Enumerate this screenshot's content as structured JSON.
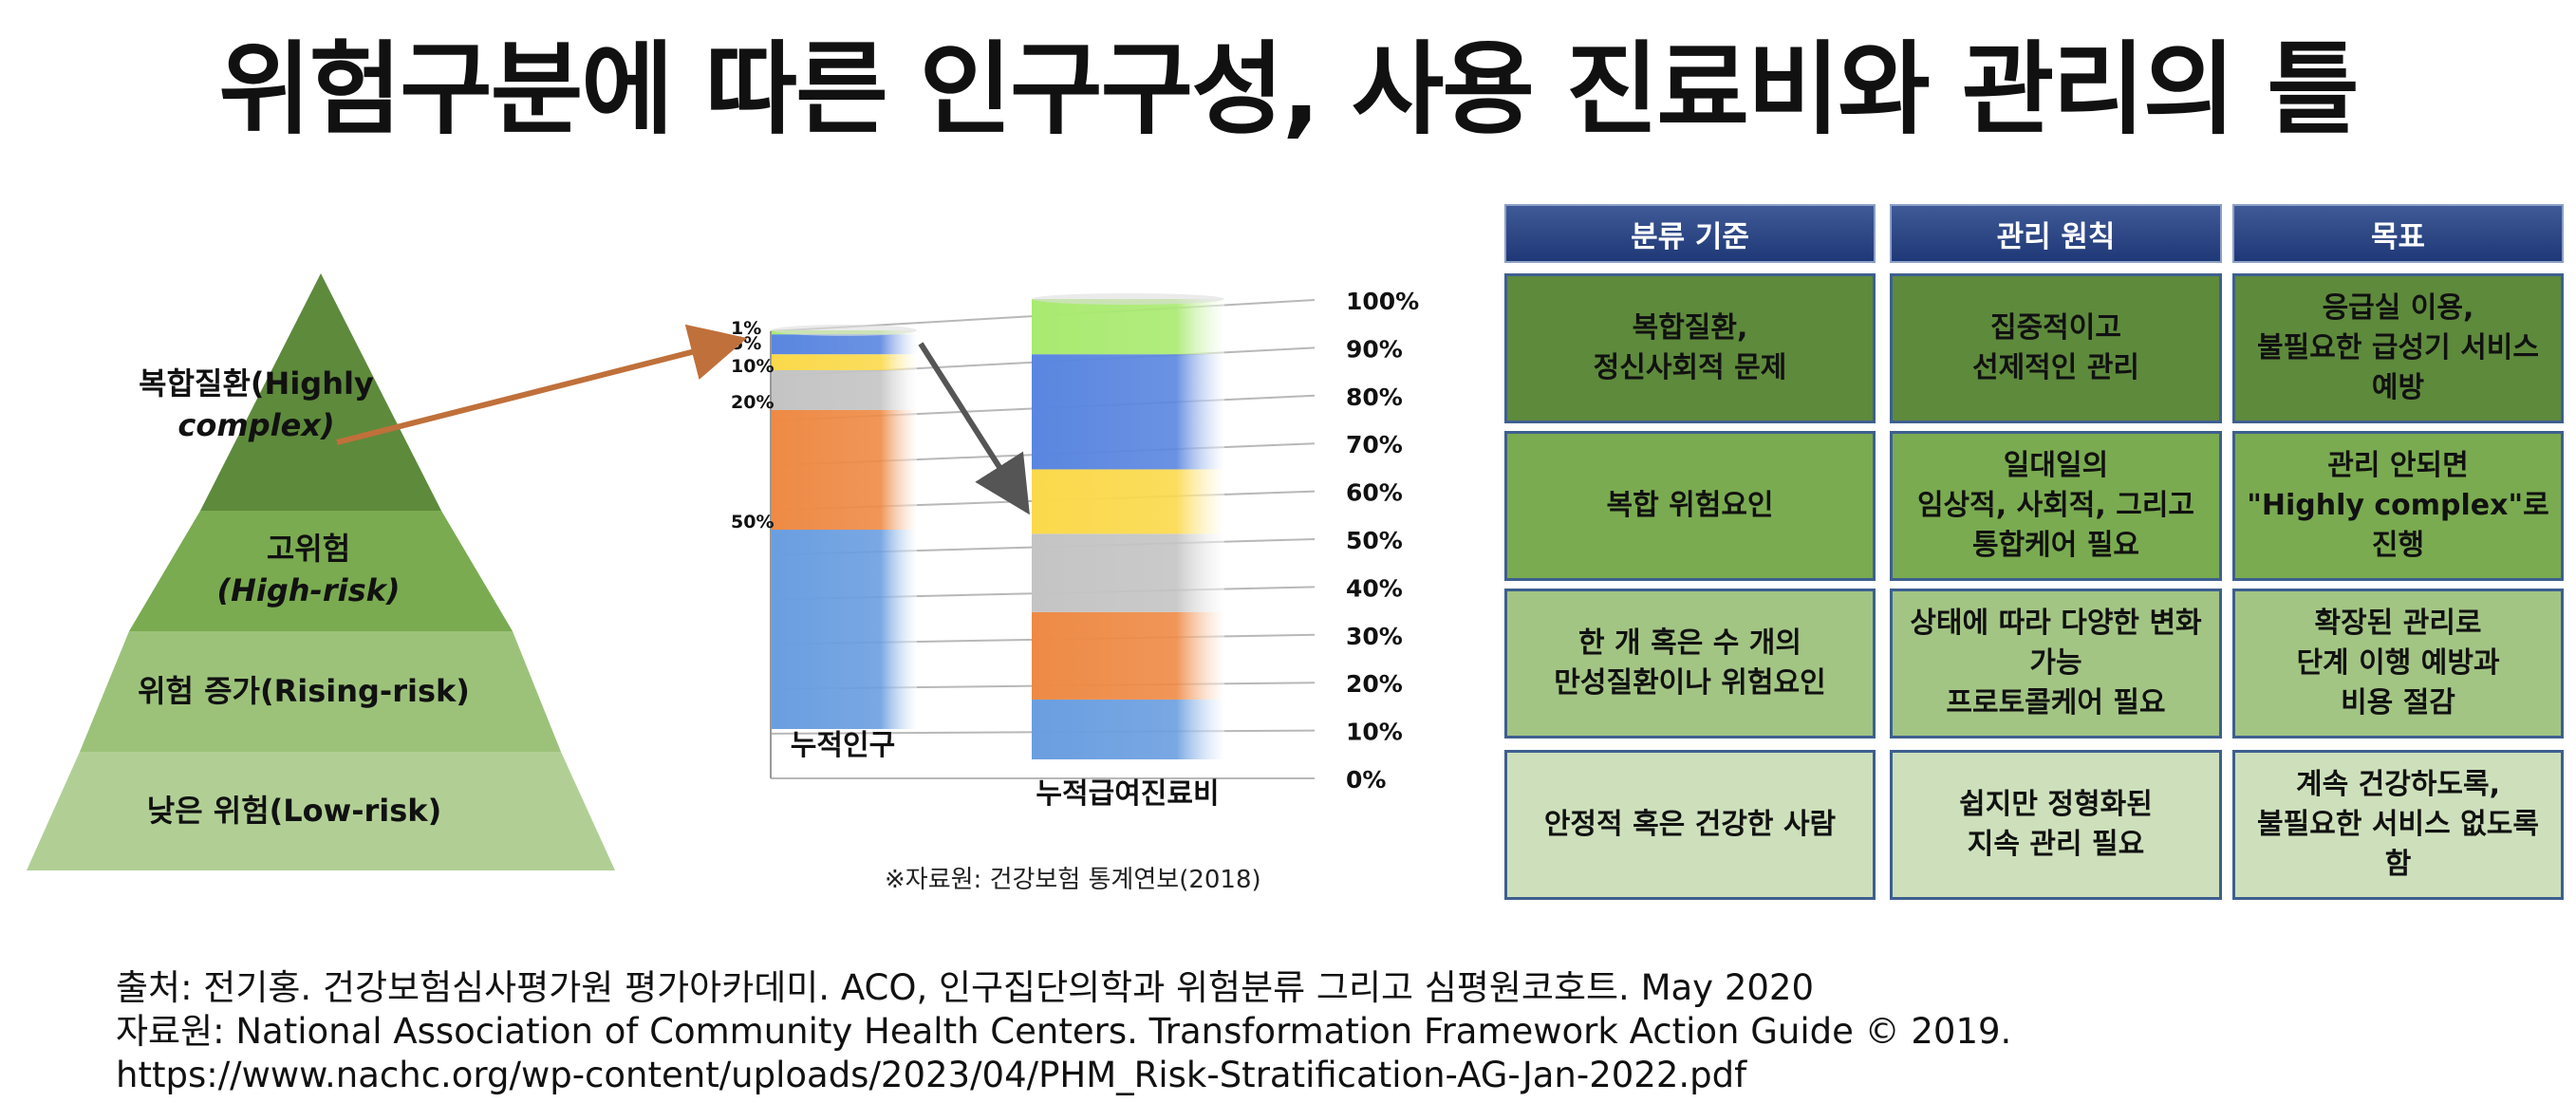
{
  "title": "위험구분에 따른 인구구성, 사용 진료비와 관리의 틀",
  "pyramid": {
    "levels": [
      {
        "ko": "복합질환",
        "en": "(Highly complex)",
        "color": "#5e8a3c"
      },
      {
        "ko": "고위험",
        "en": "(High-risk)",
        "color": "#7aab50"
      },
      {
        "ko": "위험 증가(Rising-risk)",
        "en": "",
        "color": "#9cc27a"
      },
      {
        "ko": "낮은 위험(Low-risk)",
        "en": "",
        "color": "#b1cf95"
      }
    ],
    "level1_line1": "복합질환(Highly",
    "level1_line2": "complex)",
    "level2_line1": "고위험",
    "level2_line2": "(High-risk)",
    "level3": "위험 증가(Rising-risk)",
    "level4": "낮은 위험(Low-risk)"
  },
  "chart_data": {
    "type": "bar",
    "title": "",
    "categories": [
      "누적인구",
      "누적급여진료비"
    ],
    "y_tick_labels": [
      "0%",
      "10%",
      "20%",
      "30%",
      "40%",
      "50%",
      "60%",
      "70%",
      "80%",
      "90%",
      "100%"
    ],
    "ylim": [
      0,
      100
    ],
    "population_labels": [
      "1%",
      "5%",
      "10%",
      "20%",
      "50%"
    ],
    "series": [
      {
        "color": "#6a9ee0",
        "values": [
          50,
          13
        ]
      },
      {
        "color": "#ee8a45",
        "values": [
          30,
          19
        ]
      },
      {
        "color": "#c4c4c4",
        "values": [
          10,
          17
        ]
      },
      {
        "color": "#fbd94b",
        "values": [
          4,
          14
        ]
      },
      {
        "color": "#5a86e0",
        "values": [
          5,
          25
        ]
      },
      {
        "color": "#a9ea70",
        "values": [
          1,
          12
        ]
      }
    ]
  },
  "source_note": "※자료원: 건강보험 통계연보(2018)",
  "table": {
    "headers": [
      "분류 기준",
      "관리 원칙",
      "목표"
    ],
    "rows": [
      [
        "복합질환,\n정신사회적 문제",
        "집중적이고\n선제적인 관리",
        "응급실 이용,\n불필요한 급성기 서비스\n예방"
      ],
      [
        "복합 위험요인",
        "일대일의\n임상적, 사회적, 그리고\n통합케어 필요",
        "관리 안되면\n\"Highly complex\"로\n진행"
      ],
      [
        "한 개 혹은 수 개의\n만성질환이나 위험요인",
        "상태에 따라 다양한 변화\n가능\n프로토콜케어 필요",
        "확장된 관리로\n단계 이행 예방과\n비용 절감"
      ],
      [
        "안정적 혹은 건강한 사람",
        "쉽지만 정형화된\n지속 관리 필요",
        "계속 건강하도록,\n불필요한 서비스 없도록\n함"
      ]
    ]
  },
  "references": [
    "출처: 전기홍. 건강보험심사평가원 평가아카데미. ACO, 인구집단의학과 위험분류 그리고 심평원코호트. May 2020",
    "자료원: National Association of Community Health Centers. Transformation Framework Action Guide © 2019.",
    " https://www.nachc.org/wp-content/uploads/2023/04/PHM_Risk-Stratification-AG-Jan-2022.pdf"
  ],
  "colors": {
    "header_blue": "#26407f",
    "arrow_orange": "#c0703a",
    "arrow_gray": "#555555"
  }
}
